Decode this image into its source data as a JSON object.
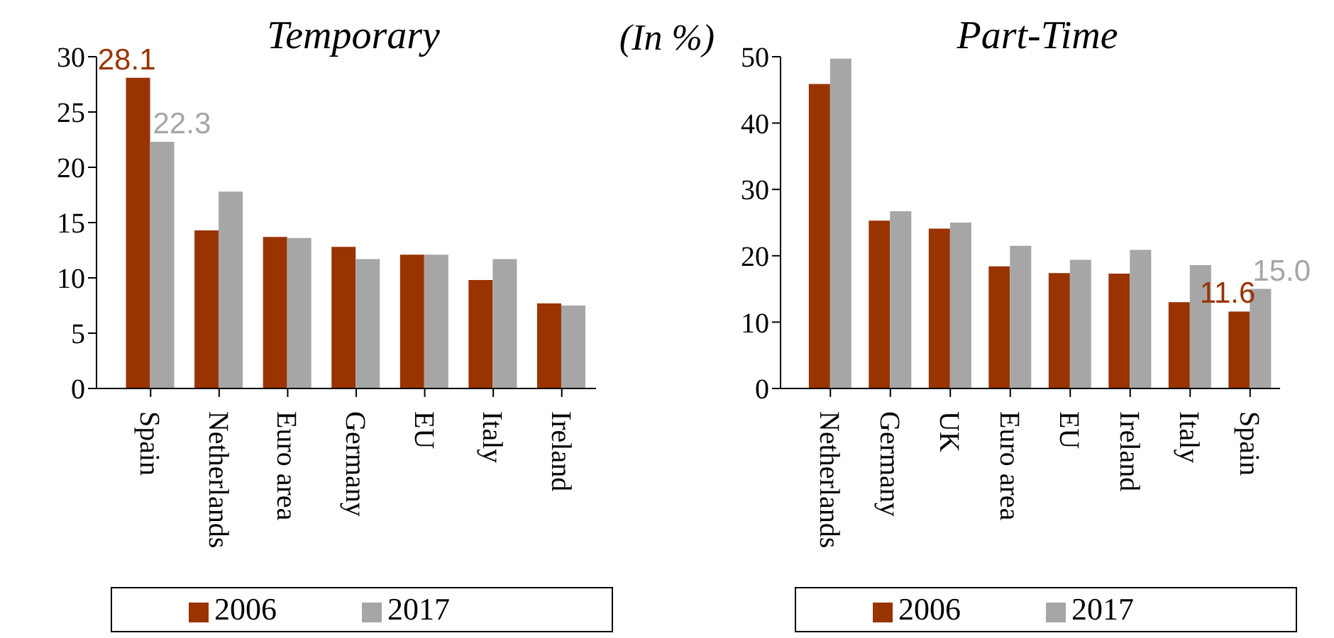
{
  "chart_data": [
    {
      "type": "bar",
      "title": "Temporary",
      "annotations": [
        "(In %)"
      ],
      "categories": [
        "Spain",
        "Netherlands",
        "Euro area",
        "Germany",
        "EU",
        "Italy",
        "Ireland"
      ],
      "series": [
        {
          "name": "2006",
          "color": "#993300",
          "values": [
            28.1,
            14.3,
            13.7,
            12.8,
            12.1,
            9.8,
            7.7
          ],
          "value_labels": [
            "28.1",
            null,
            null,
            null,
            null,
            null,
            null
          ]
        },
        {
          "name": "2017",
          "color": "#a6a6a6",
          "values": [
            22.3,
            17.8,
            13.6,
            11.7,
            12.1,
            11.7,
            7.5
          ],
          "value_labels": [
            "22.3",
            null,
            null,
            null,
            null,
            null,
            null
          ]
        }
      ],
      "ylim": [
        0,
        30
      ],
      "yticks": [
        0,
        5,
        10,
        15,
        20,
        25,
        30
      ],
      "grid": false,
      "legend": "bottom"
    },
    {
      "type": "bar",
      "title": "Part-Time",
      "categories": [
        "Netherlands",
        "Germany",
        "UK",
        "Euro area",
        "EU",
        "Ireland",
        "Italy",
        "Spain"
      ],
      "series": [
        {
          "name": "2006",
          "color": "#993300",
          "values": [
            45.9,
            25.3,
            24.1,
            18.4,
            17.4,
            17.3,
            13.0,
            11.6
          ],
          "value_labels": [
            null,
            null,
            null,
            null,
            null,
            null,
            null,
            "11.6"
          ]
        },
        {
          "name": "2017",
          "color": "#a6a6a6",
          "values": [
            49.7,
            26.7,
            25.0,
            21.5,
            19.4,
            20.9,
            18.6,
            15.0
          ],
          "value_labels": [
            null,
            null,
            null,
            null,
            null,
            null,
            null,
            "15.0"
          ]
        }
      ],
      "ylim": [
        0,
        50
      ],
      "yticks": [
        0,
        10,
        20,
        30,
        40,
        50
      ],
      "grid": false,
      "legend": "bottom"
    }
  ]
}
